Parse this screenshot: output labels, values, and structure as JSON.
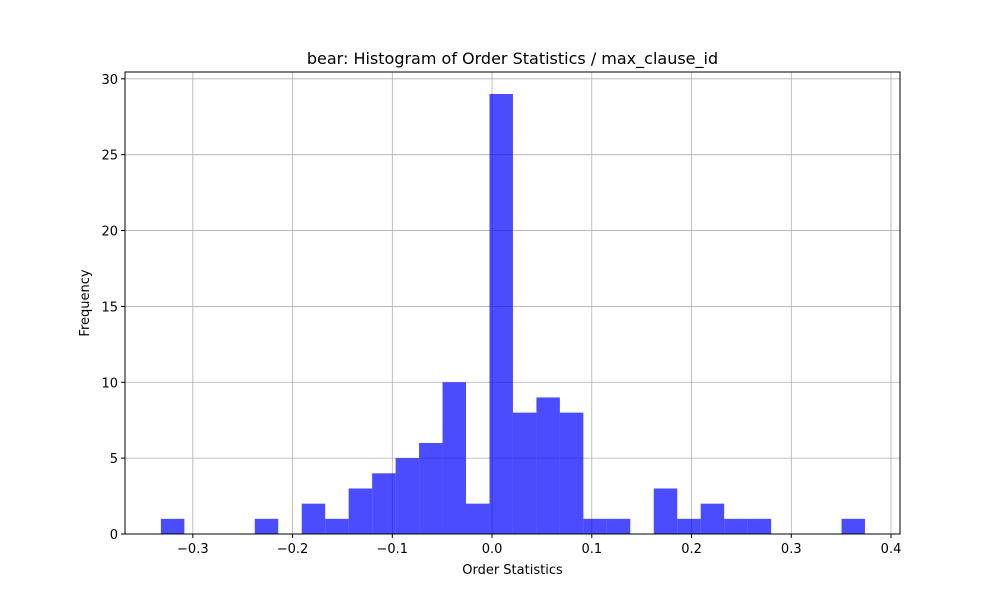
{
  "chart_data": {
    "type": "bar",
    "title": "bear: Histogram of Order Statistics / max_clause_id",
    "xlabel": "Order Statistics",
    "ylabel": "Frequency",
    "xlim": [
      -0.368,
      0.409
    ],
    "ylim": [
      0,
      30.45
    ],
    "xticks": [
      {
        "value": -0.3,
        "label": "−0.3"
      },
      {
        "value": -0.2,
        "label": "−0.2"
      },
      {
        "value": -0.1,
        "label": "−0.1"
      },
      {
        "value": 0.0,
        "label": "0.0"
      },
      {
        "value": 0.1,
        "label": "0.1"
      },
      {
        "value": 0.2,
        "label": "0.2"
      },
      {
        "value": 0.3,
        "label": "0.3"
      },
      {
        "value": 0.4,
        "label": "0.4"
      }
    ],
    "yticks": [
      {
        "value": 0,
        "label": "0"
      },
      {
        "value": 5,
        "label": "5"
      },
      {
        "value": 10,
        "label": "10"
      },
      {
        "value": 15,
        "label": "15"
      },
      {
        "value": 20,
        "label": "20"
      },
      {
        "value": 25,
        "label": "25"
      },
      {
        "value": 30,
        "label": "30"
      }
    ],
    "grid": true,
    "bar_color": "#0000ff",
    "bar_opacity": 0.7,
    "bins": {
      "start": -0.332,
      "width": 0.02353,
      "counts": [
        1,
        0,
        0,
        0,
        1,
        0,
        2,
        1,
        3,
        4,
        5,
        6,
        10,
        2,
        29,
        8,
        9,
        8,
        1,
        1,
        0,
        3,
        1,
        2,
        1,
        1,
        0,
        0,
        0,
        1
      ]
    }
  }
}
